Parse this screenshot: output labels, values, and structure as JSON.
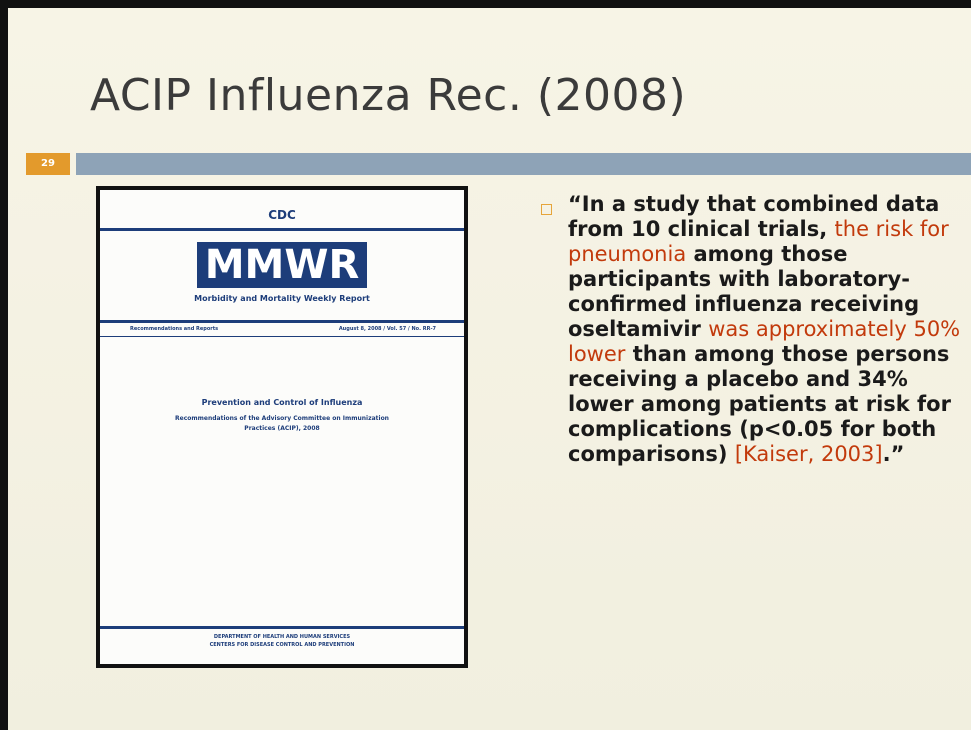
{
  "slide": {
    "title": "ACIP Influenza Rec. (2008)",
    "number": "29",
    "cover": {
      "agency": "CDC",
      "masthead": "MMWR",
      "subtitle": "Morbidity and Mortality Weekly Report",
      "series": "Recommendations and Reports",
      "issue": "August 8, 2008 / Vol. 57 / No. RR-7",
      "heading": "Prevention and Control of Influenza",
      "subheading": "Recommendations of the Advisory Committee on Immunization Practices (ACIP), 2008",
      "footer1": "Department of Health and Human Services",
      "footer2": "Centers for Disease Control and Prevention"
    },
    "quote": {
      "segments": [
        {
          "text": "“In a study that combined data from 10 clinical trials, ",
          "highlight": false
        },
        {
          "text": "the risk for pneumonia",
          "highlight": true
        },
        {
          "text": " among those participants with laboratory-confirmed influenza receiving oseltamivir ",
          "highlight": false
        },
        {
          "text": "was approximately 50% lower",
          "highlight": true
        },
        {
          "text": " than among those persons receiving a placebo and 34% lower among patients at risk for complications (p<0.05 for both comparisons) ",
          "highlight": false
        },
        {
          "text": "[Kaiser, 2003]",
          "highlight": true
        },
        {
          "text": ".”",
          "highlight": false
        }
      ]
    }
  }
}
